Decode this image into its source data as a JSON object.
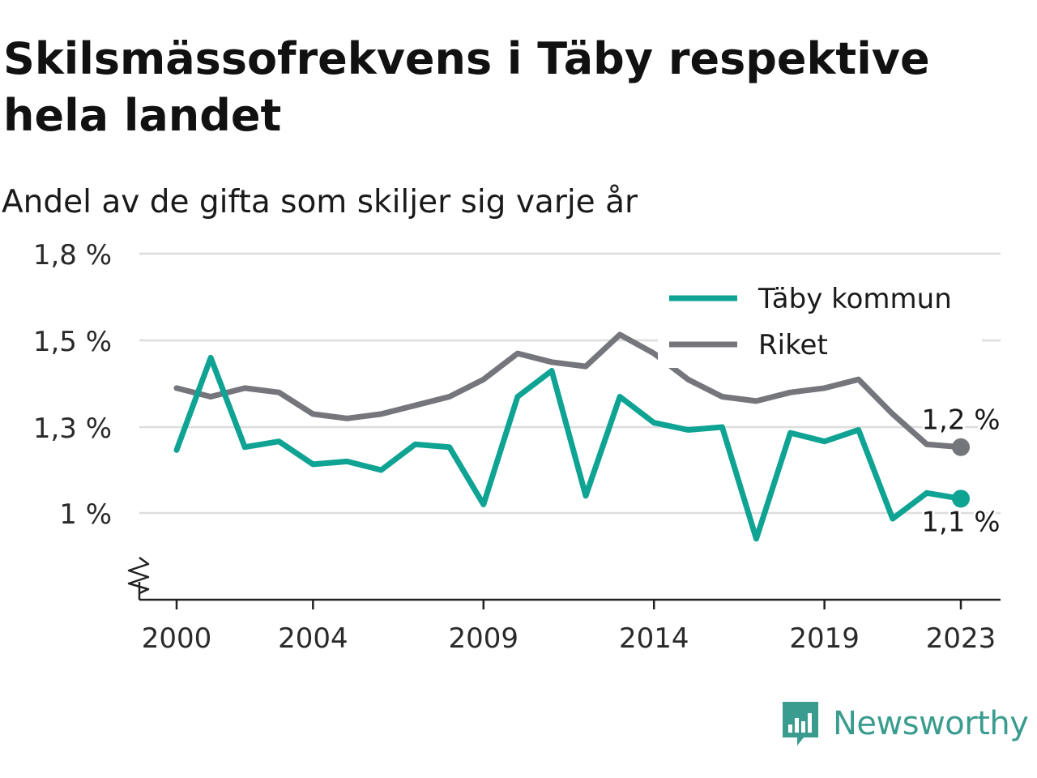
{
  "title": "Skilsmässofrekvens i Täby respektive hela landet",
  "subtitle": "Andel av de gifta som skiljer sig varje år",
  "brand": {
    "name": "Newsworthy",
    "icon": "newsworthy-logo-icon"
  },
  "colors": {
    "taby": "#0fa394",
    "riket": "#75757c",
    "grid": "#dddddd",
    "axis": "#222222",
    "brand": "#3a9c8f"
  },
  "chart_data": {
    "type": "line",
    "x": [
      2000,
      2001,
      2002,
      2003,
      2004,
      2005,
      2006,
      2007,
      2008,
      2009,
      2010,
      2011,
      2012,
      2013,
      2014,
      2015,
      2016,
      2017,
      2018,
      2019,
      2020,
      2021,
      2022,
      2023
    ],
    "x_ticks": [
      2000,
      2004,
      2009,
      2014,
      2019,
      2023
    ],
    "y_ticks": [
      1.0,
      1.3,
      1.5,
      1.8
    ],
    "y_tick_labels": [
      "1 %",
      "1,3 %",
      "1,5 %",
      "1,8 %"
    ],
    "ylim": [
      0.8,
      1.8
    ],
    "y_axis_break": true,
    "grid": true,
    "legend_position": "top-right",
    "series": [
      {
        "name": "Täby kommun",
        "color": "#0fa394",
        "values": [
          1.22,
          1.46,
          1.23,
          1.25,
          1.17,
          1.18,
          1.15,
          1.24,
          1.23,
          1.03,
          1.37,
          1.43,
          1.06,
          1.37,
          1.31,
          1.29,
          1.3,
          0.91,
          1.28,
          1.25,
          1.29,
          0.98,
          1.07,
          1.05
        ],
        "end_label": "1,1 %"
      },
      {
        "name": "Riket",
        "color": "#75757c",
        "values": [
          1.39,
          1.37,
          1.39,
          1.38,
          1.33,
          1.32,
          1.33,
          1.35,
          1.37,
          1.41,
          1.47,
          1.45,
          1.44,
          1.52,
          1.47,
          1.41,
          1.37,
          1.36,
          1.38,
          1.39,
          1.41,
          1.33,
          1.24,
          1.23
        ],
        "end_label": "1,2 %"
      }
    ]
  }
}
